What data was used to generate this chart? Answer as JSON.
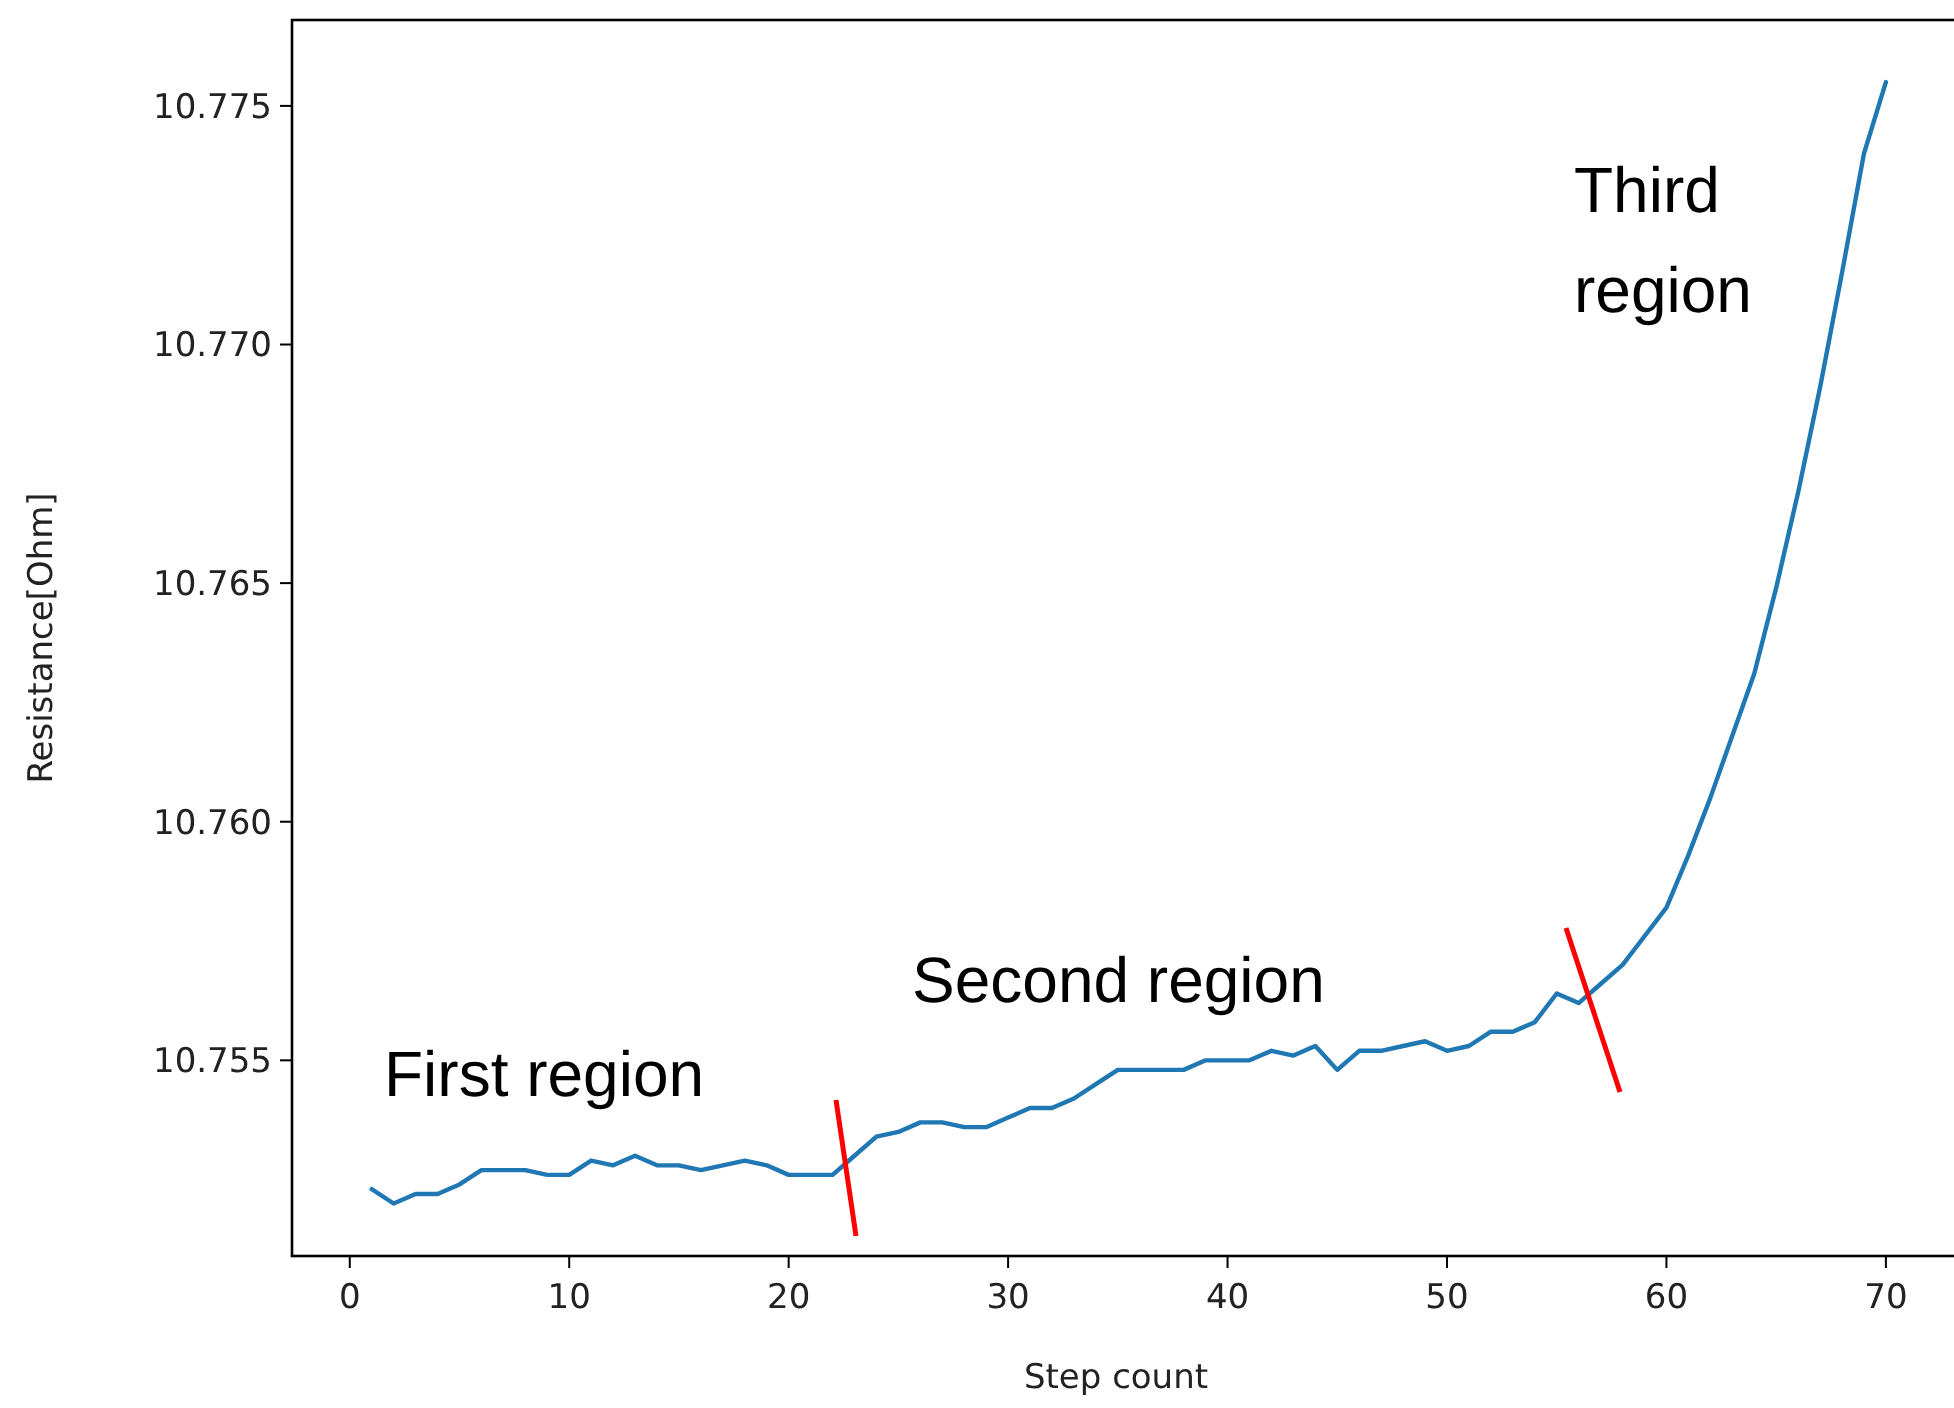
{
  "chart_data": {
    "type": "line",
    "xlabel": "Step count",
    "ylabel": "Resistance[Ohm]",
    "x": [
      1,
      2,
      3,
      4,
      5,
      6,
      7,
      8,
      9,
      10,
      11,
      12,
      13,
      14,
      15,
      16,
      17,
      18,
      19,
      20,
      21,
      22,
      23,
      24,
      25,
      26,
      27,
      28,
      29,
      30,
      31,
      32,
      33,
      34,
      35,
      36,
      37,
      38,
      39,
      40,
      41,
      42,
      43,
      44,
      45,
      46,
      47,
      48,
      49,
      50,
      51,
      52,
      53,
      54,
      55,
      56,
      57,
      58,
      59,
      60,
      61,
      62,
      63,
      64,
      65,
      66,
      67,
      68,
      69,
      70
    ],
    "series": [
      {
        "color": "#1f77b4",
        "values": [
          10.7523,
          10.752,
          10.7522,
          10.7522,
          10.7524,
          10.7527,
          10.7527,
          10.7527,
          10.7526,
          10.7526,
          10.7529,
          10.7528,
          10.753,
          10.7528,
          10.7528,
          10.7527,
          10.7528,
          10.7529,
          10.7528,
          10.7526,
          10.7526,
          10.7526,
          10.753,
          10.7534,
          10.7535,
          10.7537,
          10.7537,
          10.7536,
          10.7536,
          10.7538,
          10.754,
          10.754,
          10.7542,
          10.7545,
          10.7548,
          10.7548,
          10.7548,
          10.7548,
          10.755,
          10.755,
          10.755,
          10.7552,
          10.7551,
          10.7553,
          10.7548,
          10.7552,
          10.7552,
          10.7553,
          10.7554,
          10.7552,
          10.7553,
          10.7556,
          10.7556,
          10.7558,
          10.7564,
          10.7562,
          10.7566,
          10.757,
          10.7576,
          10.7582,
          10.7593,
          10.7605,
          10.7618,
          10.7631,
          10.7649,
          10.7669,
          10.7691,
          10.7715,
          10.774,
          10.7755
        ]
      }
    ],
    "xlim": [
      -2.45,
      73.45
    ],
    "xticks": [
      0,
      10,
      20,
      30,
      40,
      50,
      60,
      70
    ],
    "ylim": [
      10.7509,
      10.7768
    ],
    "yticks": [
      {
        "value": 10.755,
        "label": "10.755"
      },
      {
        "value": 10.76,
        "label": "10.760"
      },
      {
        "value": 10.765,
        "label": "10.765"
      },
      {
        "value": 10.77,
        "label": "10.770"
      },
      {
        "value": 10.775,
        "label": "10.775"
      }
    ],
    "annotations": [
      "First region",
      "Second region",
      "Third region"
    ],
    "grid": false,
    "marker": "none",
    "line_style": "solid"
  }
}
